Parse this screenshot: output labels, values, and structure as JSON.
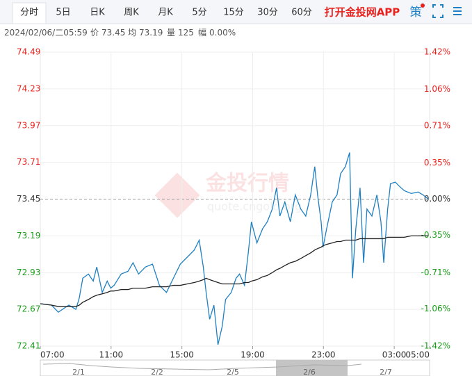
{
  "tabs": [
    "分时",
    "5日",
    "日K",
    "周K",
    "月K",
    "5分",
    "15分",
    "30分",
    "60分"
  ],
  "app_link": "打开金投网APP",
  "strategy": "策",
  "info": {
    "datetime": "2024/02/06/二05:59",
    "items": [
      {
        "label": "价",
        "value": "73.45"
      },
      {
        "label": "均",
        "value": "73.19"
      },
      {
        "label": "量",
        "value": "125"
      },
      {
        "label": "幅",
        "value": "0.00%"
      }
    ]
  },
  "watermark": {
    "title": "金投行情",
    "url": "quote.cngold.org"
  },
  "navigator": {
    "labels": [
      "2/1",
      "2/2",
      "2/5",
      "2/6",
      "2/7"
    ]
  },
  "chart_data": {
    "type": "line",
    "x": [
      7.0,
      7.63,
      8.02,
      8.61,
      9.01,
      9.2,
      9.4,
      9.72,
      9.99,
      10.19,
      10.5,
      10.78,
      10.98,
      11.17,
      11.57,
      11.96,
      12.24,
      12.55,
      12.94,
      13.34,
      13.73,
      14.13,
      14.52,
      14.91,
      15.31,
      15.7,
      15.98,
      16.21,
      16.37,
      16.57,
      16.81,
      17.04,
      17.28,
      17.47,
      17.79,
      18.06,
      18.26,
      18.54,
      18.77,
      18.93,
      19.24,
      19.56,
      19.83,
      20.11,
      20.35,
      20.54,
      20.82,
      21.13,
      21.41,
      21.72,
      22.0,
      22.28,
      22.51,
      22.67,
      22.87,
      22.98,
      23.18,
      23.5,
      23.77,
      23.97,
      24.24,
      24.48,
      24.64,
      24.83,
      25.07,
      25.27,
      25.46,
      25.74,
      26.02,
      26.25,
      26.41,
      26.63,
      26.79,
      27.06,
      27.3,
      27.57,
      27.96,
      28.35,
      28.63,
      28.83,
      28.94
    ],
    "series": [
      {
        "color": "#1f80c2",
        "values": [
          72.71,
          72.7,
          72.65,
          72.7,
          72.67,
          72.75,
          72.89,
          72.92,
          72.87,
          72.97,
          72.79,
          72.87,
          72.82,
          72.84,
          72.92,
          72.94,
          73.0,
          72.92,
          72.97,
          72.99,
          72.84,
          72.79,
          72.89,
          72.99,
          73.04,
          73.09,
          73.16,
          72.97,
          72.79,
          72.6,
          72.7,
          72.42,
          72.55,
          72.74,
          72.79,
          72.89,
          72.92,
          72.84,
          73.09,
          73.29,
          73.14,
          73.24,
          73.29,
          73.38,
          73.53,
          73.33,
          73.43,
          73.29,
          73.48,
          73.38,
          73.33,
          73.48,
          73.68,
          73.48,
          73.29,
          73.11,
          73.24,
          73.43,
          73.48,
          73.63,
          73.68,
          73.78,
          72.89,
          73.24,
          73.53,
          73.0,
          73.38,
          73.33,
          73.48,
          73.29,
          73.0,
          73.38,
          73.56,
          73.57,
          73.54,
          73.51,
          73.49,
          73.5,
          73.48,
          73.46,
          73.45
        ]
      },
      {
        "color": "#222222",
        "values": [
          72.71,
          72.7,
          72.69,
          72.69,
          72.69,
          72.7,
          72.72,
          72.74,
          72.76,
          72.77,
          72.78,
          72.79,
          72.8,
          72.8,
          72.81,
          72.81,
          72.82,
          72.82,
          72.82,
          72.83,
          72.83,
          72.83,
          72.84,
          72.84,
          72.85,
          72.86,
          72.87,
          72.88,
          72.89,
          72.88,
          72.87,
          72.86,
          72.85,
          72.85,
          72.85,
          72.85,
          72.85,
          72.86,
          72.86,
          72.87,
          72.88,
          72.9,
          72.91,
          72.93,
          72.95,
          72.96,
          72.98,
          73.0,
          73.01,
          73.03,
          73.05,
          73.07,
          73.09,
          73.1,
          73.11,
          73.12,
          73.13,
          73.14,
          73.15,
          73.15,
          73.16,
          73.16,
          73.16,
          73.16,
          73.17,
          73.17,
          73.17,
          73.17,
          73.17,
          73.17,
          73.17,
          73.18,
          73.18,
          73.18,
          73.18,
          73.18,
          73.19,
          73.19,
          73.19,
          73.19,
          73.19
        ]
      }
    ],
    "xlim": [
      7,
      29
    ],
    "xticks": [
      {
        "value": 7,
        "label": "07:00"
      },
      {
        "value": 11,
        "label": "11:00"
      },
      {
        "value": 15,
        "label": "15:00"
      },
      {
        "value": 19,
        "label": "19:00"
      },
      {
        "value": 23,
        "label": "23:00"
      },
      {
        "value": 27,
        "label": "03:00"
      },
      {
        "value": 29,
        "label": "05:00"
      }
    ],
    "ylim": [
      72.41,
      74.49
    ],
    "yticks": [
      74.49,
      74.23,
      73.97,
      73.71,
      73.45,
      73.19,
      72.93,
      72.67,
      72.41
    ],
    "y2lim": [
      -1.42,
      1.42
    ],
    "y2ticks": [
      {
        "value": 1.42,
        "label": "1.42%"
      },
      {
        "value": 1.06,
        "label": "1.06%"
      },
      {
        "value": 0.71,
        "label": "0.71%"
      },
      {
        "value": 0.35,
        "label": "0.35%"
      },
      {
        "value": 0,
        "label": "0.00%"
      },
      {
        "value": -0.35,
        "label": "-0.35%"
      },
      {
        "value": -0.71,
        "label": "-0.71%"
      },
      {
        "value": -1.06,
        "label": "-1.06%"
      },
      {
        "value": -1.42,
        "label": "-1.42%"
      }
    ],
    "reference_line": 73.45,
    "grid": true,
    "colors": {
      "up": "#e8231f",
      "down": "#1a9c1a",
      "flat": "#333333"
    }
  }
}
